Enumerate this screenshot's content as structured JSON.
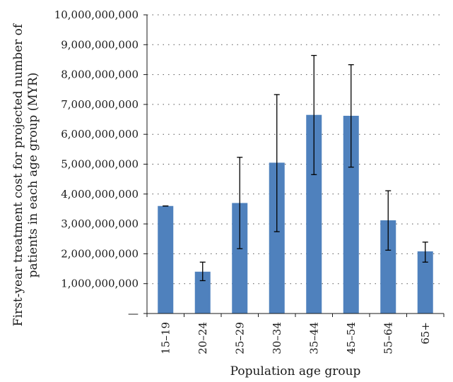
{
  "chart_data": {
    "type": "bar",
    "title": "",
    "xlabel": "Population age group",
    "ylabel_line1": "First-year treatment cost for projected number of",
    "ylabel_line2": "patients in each age group (MYR)",
    "categories": [
      "15–19",
      "20–24",
      "25–29",
      "30–34",
      "35–44",
      "45–54",
      "55–64",
      "65+"
    ],
    "values": [
      3600000000,
      1400000000,
      3700000000,
      5050000000,
      6650000000,
      6620000000,
      3120000000,
      2080000000
    ],
    "error_low": [
      3600000000,
      1100000000,
      2170000000,
      2740000000,
      4650000000,
      4900000000,
      2120000000,
      1720000000
    ],
    "error_high": [
      3600000000,
      1720000000,
      5230000000,
      7330000000,
      8640000000,
      8330000000,
      4110000000,
      2390000000
    ],
    "ylim": [
      0,
      10000000000
    ],
    "yticks": [
      0,
      1000000000,
      2000000000,
      3000000000,
      4000000000,
      5000000000,
      6000000000,
      7000000000,
      8000000000,
      9000000000,
      10000000000
    ],
    "ytick_labels": [
      "—",
      "1,000,000,000",
      "2,000,000,000",
      "3,000,000,000",
      "4,000,000,000",
      "5,000,000,000",
      "6,000,000,000",
      "7,000,000,000",
      "8,000,000,000",
      "9,000,000,000",
      "10,000,000,000"
    ],
    "grid": "horizontal-dotted",
    "legend": "none",
    "bar_color": "#4f81bd",
    "axis_color": "#1a1a1a"
  }
}
